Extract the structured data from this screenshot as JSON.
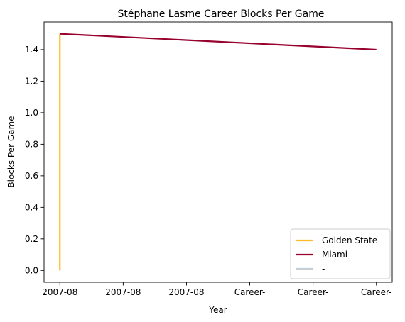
{
  "chart_data": {
    "type": "line",
    "title": "Stéphane Lasme Career Blocks Per Game",
    "xlabel": "Year",
    "ylabel": "Blocks Per Game",
    "x_tick_labels": [
      "2007-08",
      "2007-08",
      "2007-08",
      "Career-",
      "Career-",
      "Career-"
    ],
    "y_ticks": [
      0.0,
      0.2,
      0.4,
      0.6,
      0.8,
      1.0,
      1.2,
      1.4
    ],
    "y_tick_labels": [
      "0.0",
      "0.2",
      "0.4",
      "0.6",
      "0.8",
      "1.0",
      "1.2",
      "1.4"
    ],
    "ylim": [
      -0.075,
      1.575
    ],
    "xlim": [
      -0.25,
      5.25
    ],
    "grid": false,
    "legend_position": "lower-right",
    "series": [
      {
        "name": "Golden State",
        "color": "#FDB927",
        "x": [
          0,
          0
        ],
        "y": [
          0.0,
          1.5
        ]
      },
      {
        "name": "Miami",
        "color": "#98002E",
        "x": [
          0,
          5
        ],
        "y": [
          1.5,
          1.4
        ]
      },
      {
        "name": "-",
        "color": "#C4CED4",
        "x": [],
        "y": []
      }
    ]
  }
}
